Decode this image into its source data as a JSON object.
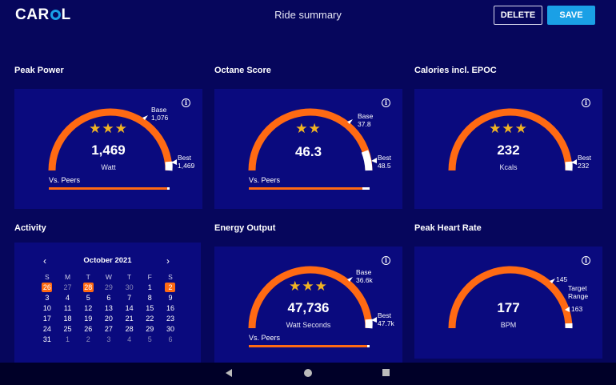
{
  "app": {
    "logo": "CAROL",
    "logo_pre": "CAR",
    "logo_post": "L",
    "title": "Ride summary"
  },
  "actions": {
    "delete_label": "DELETE",
    "save_label": "SAVE"
  },
  "colors": {
    "accent_orange": "#ff6a13",
    "save_blue": "#1aa0e6",
    "background": "#06065c",
    "card": "#0a0a7e",
    "star": "#f0b323"
  },
  "cards": {
    "peak_power": {
      "label": "Peak Power",
      "stars": "★★★",
      "value": "1,469",
      "unit": "Watt",
      "base_label": "Base",
      "base_value": "1,076",
      "best_label": "Best",
      "best_value": "1,469",
      "peers_label": "Vs. Peers",
      "peers_fill": 0.98,
      "info": "i"
    },
    "octane_score": {
      "label": "Octane Score",
      "stars": "★★",
      "value": "46.3",
      "unit": "",
      "base_label": "Base",
      "base_value": "37.8",
      "best_label": "Best",
      "best_value": "48.5",
      "peers_label": "Vs. Peers",
      "peers_fill": 0.94,
      "info": "i"
    },
    "calories": {
      "label": "Calories incl. EPOC",
      "stars": "★★★",
      "value": "232",
      "unit": "Kcals",
      "best_label": "Best",
      "best_value": "232",
      "info": "i"
    },
    "energy_output": {
      "label": "Energy Output",
      "stars": "★★★",
      "value": "47,736",
      "unit": "Watt Seconds",
      "base_label": "Base",
      "base_value": "36.6k",
      "best_label": "Best",
      "best_value": "47.7k",
      "peers_label": "Vs. Peers",
      "peers_fill": 0.98,
      "info": "i"
    },
    "heart_rate": {
      "label": "Peak Heart Rate",
      "value": "177",
      "unit": "BPM",
      "upper_value": "145",
      "target_label": "Target",
      "range_label": "Range",
      "lower_value": "163",
      "info": "i"
    }
  },
  "activity": {
    "label": "Activity",
    "month": "October 2021",
    "prev": "‹",
    "next": "›",
    "weekdays": [
      "S",
      "M",
      "T",
      "W",
      "T",
      "F",
      "S"
    ],
    "days": [
      [
        "26",
        "27",
        "28",
        "29",
        "30",
        "1",
        "2"
      ],
      [
        "3",
        "4",
        "5",
        "6",
        "7",
        "8",
        "9"
      ],
      [
        "10",
        "11",
        "12",
        "13",
        "14",
        "15",
        "16"
      ],
      [
        "17",
        "18",
        "19",
        "20",
        "21",
        "22",
        "23"
      ],
      [
        "24",
        "25",
        "26",
        "27",
        "28",
        "29",
        "30"
      ],
      [
        "31",
        "1",
        "2",
        "3",
        "4",
        "5",
        "6"
      ]
    ],
    "highlighted": [
      "0-0",
      "0-2",
      "0-6"
    ],
    "muted": [
      "0-1",
      "0-3",
      "0-4",
      "5-1",
      "5-2",
      "5-3",
      "5-4",
      "5-5",
      "5-6"
    ]
  },
  "navbar": {
    "back": "back-icon",
    "home": "home-icon",
    "recent": "recent-apps-icon"
  }
}
